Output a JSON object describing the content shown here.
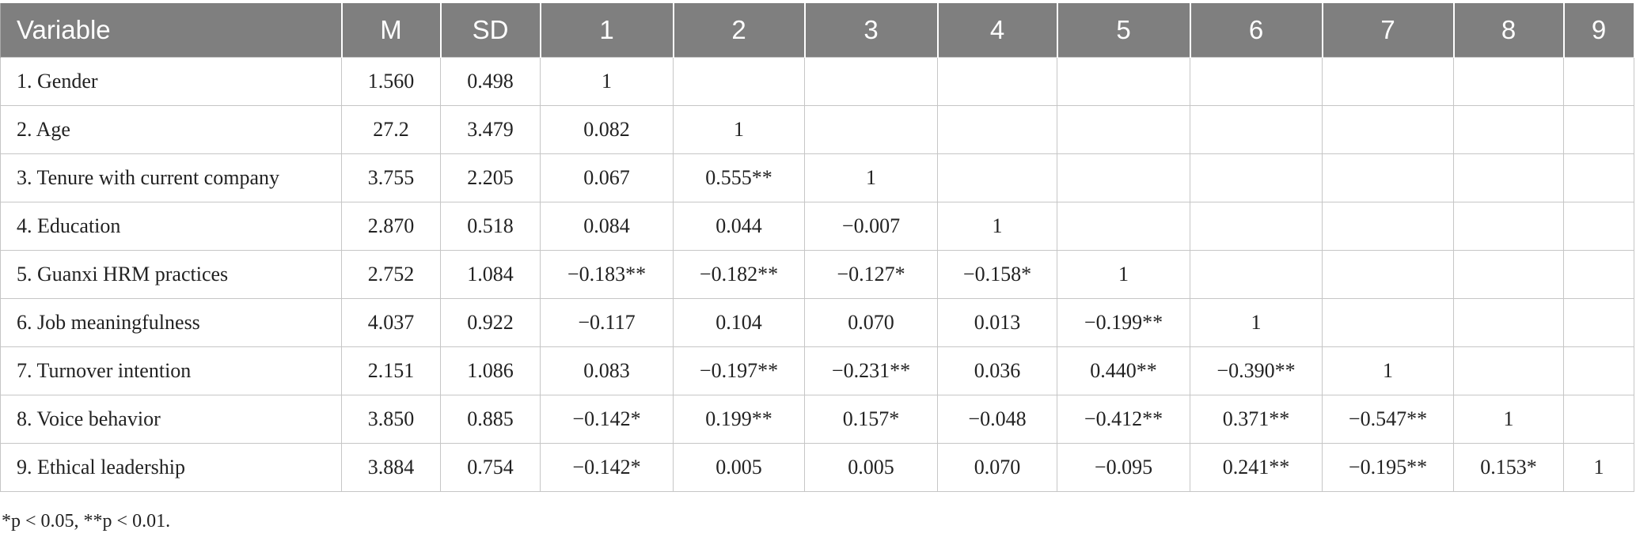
{
  "table": {
    "header": [
      "Variable",
      "M",
      "SD",
      "1",
      "2",
      "3",
      "4",
      "5",
      "6",
      "7",
      "8",
      "9"
    ],
    "rows": [
      [
        "1. Gender",
        "1.560",
        "0.498",
        "1"
      ],
      [
        "2. Age",
        "27.2",
        "3.479",
        "0.082",
        "1"
      ],
      [
        "3. Tenure with current company",
        "3.755",
        "2.205",
        "0.067",
        "0.555**",
        "1"
      ],
      [
        "4. Education",
        "2.870",
        "0.518",
        "0.084",
        "0.044",
        "−0.007",
        "1"
      ],
      [
        "5. Guanxi HRM practices",
        "2.752",
        "1.084",
        "−0.183**",
        "−0.182**",
        "−0.127*",
        "−0.158*",
        "1"
      ],
      [
        "6. Job meaningfulness",
        "4.037",
        "0.922",
        "−0.117",
        "0.104",
        "0.070",
        "0.013",
        "−0.199**",
        "1"
      ],
      [
        "7. Turnover intention",
        "2.151",
        "1.086",
        "0.083",
        "−0.197**",
        "−0.231**",
        "0.036",
        "0.440**",
        "−0.390**",
        "1"
      ],
      [
        "8. Voice behavior",
        "3.850",
        "0.885",
        "−0.142*",
        "0.199**",
        "0.157*",
        "−0.048",
        "−0.412**",
        "0.371**",
        "−0.547**",
        "1"
      ],
      [
        "9. Ethical leadership",
        "3.884",
        "0.754",
        "−0.142*",
        "0.005",
        "0.005",
        "0.070",
        "−0.095",
        "0.241**",
        "−0.195**",
        "0.153*",
        "1"
      ]
    ],
    "footnote": "*p < 0.05, **p < 0.01."
  }
}
